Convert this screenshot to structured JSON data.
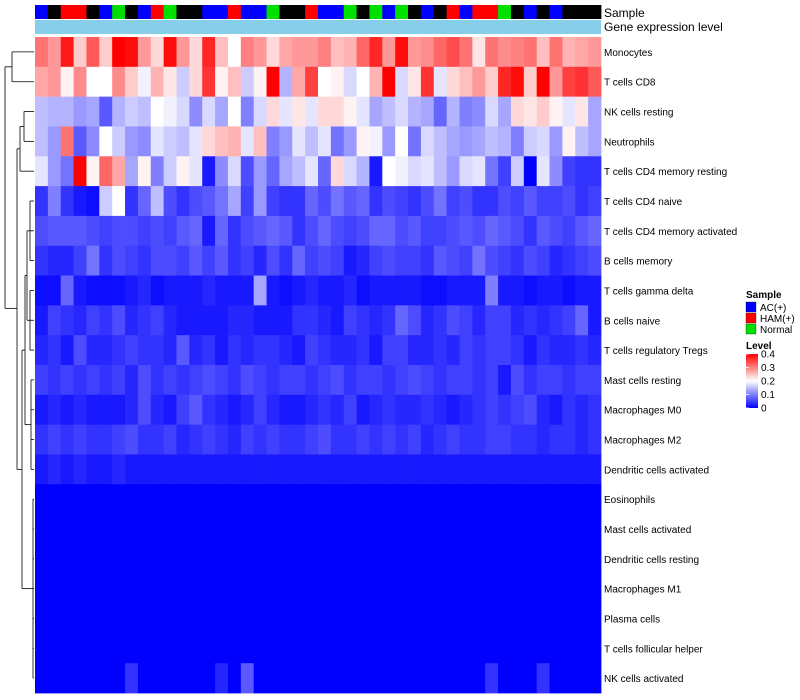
{
  "chart_data": {
    "type": "heatmap",
    "title": "",
    "annotation_rows": [
      "Sample",
      "Gene expression level"
    ],
    "sample_groups": [
      "A",
      "B",
      "H",
      "H",
      "B",
      "A",
      "N",
      "B",
      "A",
      "H",
      "N",
      "B",
      "B",
      "A",
      "A",
      "H",
      "A",
      "A",
      "N",
      "B",
      "B",
      "H",
      "A",
      "A",
      "N",
      "B",
      "N",
      "A",
      "N",
      "B",
      "A",
      "B",
      "H",
      "A",
      "H",
      "H",
      "N",
      "B",
      "A",
      "B",
      "A",
      "B",
      "B",
      "B"
    ],
    "group_key": {
      "A": "AC(+)",
      "H": "HAM(+)",
      "N": "Normal"
    },
    "group_colors": {
      "A": "#0000ff",
      "H": "#ff0000",
      "N": "#00e000"
    },
    "expression_bar_color": "#87ceeb",
    "rows": [
      "Monocytes",
      "T cells CD8",
      "NK cells resting",
      "Neutrophils",
      "T cells CD4 memory resting",
      "T cells CD4 naive",
      "T cells CD4 memory activated",
      "B cells memory",
      "T cells gamma delta",
      "B cells naive",
      "T cells regulatory  Tregs",
      "Mast cells resting",
      "Macrophages M0",
      "Macrophages M2",
      "Dendritic cells activated",
      "Eosinophils",
      "Mast cells activated",
      "Dendritic cells resting",
      "Macrophages M1",
      "Plasma cells",
      "T cells follicular helper",
      "NK cells activated"
    ],
    "value_range": [
      0,
      0.4
    ],
    "approximate_row_means": [
      0.27,
      0.24,
      0.17,
      0.16,
      0.14,
      0.06,
      0.06,
      0.05,
      0.02,
      0.03,
      0.03,
      0.04,
      0.03,
      0.04,
      0.02,
      0.0,
      0.0,
      0.0,
      0.0,
      0.0,
      0.0,
      0.01
    ],
    "values": [
      [
        0.31,
        0.28,
        0.38,
        0.24,
        0.33,
        0.24,
        0.4,
        0.39,
        0.28,
        0.23,
        0.39,
        0.28,
        0.23,
        0.37,
        0.25,
        0.2,
        0.3,
        0.28,
        0.23,
        0.27,
        0.28,
        0.28,
        0.3,
        0.25,
        0.26,
        0.32,
        0.37,
        0.28,
        0.39,
        0.28,
        0.29,
        0.32,
        0.34,
        0.31,
        0.22,
        0.31,
        0.29,
        0.3,
        0.31,
        0.25,
        0.31,
        0.26,
        0.27,
        0.28
      ],
      [
        0.27,
        0.28,
        0.21,
        0.29,
        0.2,
        0.2,
        0.29,
        0.24,
        0.19,
        0.26,
        0.22,
        0.16,
        0.23,
        0.36,
        0.21,
        0.25,
        0.16,
        0.21,
        0.4,
        0.14,
        0.27,
        0.35,
        0.2,
        0.21,
        0.17,
        0.2,
        0.26,
        0.4,
        0.17,
        0.22,
        0.36,
        0.18,
        0.23,
        0.25,
        0.28,
        0.24,
        0.37,
        0.39,
        0.24,
        0.4,
        0.28,
        0.35,
        0.36,
        0.33
      ],
      [
        0.15,
        0.14,
        0.14,
        0.12,
        0.13,
        0.07,
        0.14,
        0.16,
        0.15,
        0.2,
        0.19,
        0.17,
        0.11,
        0.17,
        0.13,
        0.2,
        0.1,
        0.17,
        0.23,
        0.18,
        0.22,
        0.18,
        0.23,
        0.23,
        0.21,
        0.18,
        0.13,
        0.15,
        0.17,
        0.14,
        0.13,
        0.08,
        0.14,
        0.1,
        0.11,
        0.17,
        0.13,
        0.23,
        0.22,
        0.24,
        0.21,
        0.18,
        0.22,
        0.13
      ],
      [
        0.15,
        0.12,
        0.31,
        0.07,
        0.11,
        0.2,
        0.16,
        0.12,
        0.11,
        0.18,
        0.16,
        0.15,
        0.18,
        0.23,
        0.25,
        0.26,
        0.18,
        0.25,
        0.1,
        0.12,
        0.18,
        0.15,
        0.18,
        0.09,
        0.12,
        0.21,
        0.19,
        0.12,
        0.2,
        0.09,
        0.17,
        0.15,
        0.13,
        0.12,
        0.13,
        0.15,
        0.14,
        0.1,
        0.16,
        0.17,
        0.12,
        0.21,
        0.15,
        0.13
      ],
      [
        0.18,
        0.12,
        0.09,
        0.4,
        0.21,
        0.32,
        0.27,
        0.13,
        0.21,
        0.1,
        0.16,
        0.21,
        0.18,
        0.02,
        0.11,
        0.17,
        0.06,
        0.12,
        0.08,
        0.13,
        0.15,
        0.18,
        0.08,
        0.23,
        0.17,
        0.14,
        0.02,
        0.2,
        0.19,
        0.17,
        0.18,
        0.15,
        0.12,
        0.17,
        0.18,
        0.09,
        0.05,
        0.16,
        0.0,
        0.18,
        0.11,
        0.05,
        0.04,
        0.04
      ],
      [
        0.04,
        0.1,
        0.04,
        0.02,
        0.01,
        0.16,
        0.2,
        0.04,
        0.08,
        0.15,
        0.06,
        0.04,
        0.06,
        0.07,
        0.09,
        0.13,
        0.05,
        0.12,
        0.05,
        0.04,
        0.04,
        0.08,
        0.06,
        0.09,
        0.07,
        0.08,
        0.04,
        0.06,
        0.05,
        0.04,
        0.06,
        0.09,
        0.05,
        0.06,
        0.04,
        0.04,
        0.06,
        0.05,
        0.07,
        0.05,
        0.05,
        0.06,
        0.04,
        0.05
      ],
      [
        0.06,
        0.07,
        0.07,
        0.07,
        0.06,
        0.05,
        0.06,
        0.06,
        0.05,
        0.06,
        0.05,
        0.07,
        0.08,
        0.02,
        0.08,
        0.04,
        0.06,
        0.07,
        0.08,
        0.07,
        0.04,
        0.06,
        0.08,
        0.06,
        0.05,
        0.06,
        0.08,
        0.08,
        0.06,
        0.07,
        0.05,
        0.05,
        0.06,
        0.07,
        0.06,
        0.08,
        0.07,
        0.06,
        0.04,
        0.07,
        0.06,
        0.05,
        0.07,
        0.08
      ],
      [
        0.04,
        0.03,
        0.03,
        0.05,
        0.09,
        0.04,
        0.06,
        0.05,
        0.04,
        0.06,
        0.06,
        0.05,
        0.07,
        0.05,
        0.07,
        0.04,
        0.05,
        0.03,
        0.06,
        0.04,
        0.08,
        0.05,
        0.06,
        0.05,
        0.02,
        0.03,
        0.05,
        0.06,
        0.05,
        0.05,
        0.04,
        0.07,
        0.06,
        0.05,
        0.09,
        0.06,
        0.05,
        0.04,
        0.06,
        0.05,
        0.03,
        0.04,
        0.05,
        0.06
      ],
      [
        0.01,
        0.01,
        0.08,
        0.02,
        0.01,
        0.01,
        0.01,
        0.02,
        0.03,
        0.01,
        0.02,
        0.02,
        0.02,
        0.03,
        0.02,
        0.02,
        0.02,
        0.13,
        0.02,
        0.01,
        0.02,
        0.03,
        0.02,
        0.02,
        0.03,
        0.01,
        0.02,
        0.02,
        0.02,
        0.02,
        0.01,
        0.01,
        0.02,
        0.02,
        0.02,
        0.1,
        0.02,
        0.02,
        0.01,
        0.02,
        0.02,
        0.01,
        0.02,
        0.02
      ],
      [
        0.02,
        0.05,
        0.04,
        0.03,
        0.05,
        0.04,
        0.06,
        0.03,
        0.04,
        0.05,
        0.03,
        0.02,
        0.02,
        0.02,
        0.02,
        0.03,
        0.03,
        0.02,
        0.02,
        0.02,
        0.04,
        0.04,
        0.03,
        0.02,
        0.05,
        0.04,
        0.03,
        0.04,
        0.08,
        0.06,
        0.03,
        0.04,
        0.06,
        0.05,
        0.03,
        0.05,
        0.05,
        0.03,
        0.04,
        0.03,
        0.04,
        0.05,
        0.08,
        0.02
      ],
      [
        0.03,
        0.04,
        0.02,
        0.06,
        0.03,
        0.03,
        0.04,
        0.05,
        0.04,
        0.04,
        0.03,
        0.07,
        0.03,
        0.04,
        0.02,
        0.04,
        0.03,
        0.04,
        0.04,
        0.03,
        0.02,
        0.05,
        0.04,
        0.03,
        0.03,
        0.04,
        0.02,
        0.05,
        0.05,
        0.03,
        0.03,
        0.04,
        0.03,
        0.05,
        0.04,
        0.05,
        0.05,
        0.04,
        0.02,
        0.04,
        0.03,
        0.03,
        0.04,
        0.03
      ],
      [
        0.05,
        0.04,
        0.05,
        0.04,
        0.05,
        0.04,
        0.05,
        0.03,
        0.06,
        0.04,
        0.05,
        0.04,
        0.05,
        0.06,
        0.05,
        0.04,
        0.06,
        0.05,
        0.04,
        0.05,
        0.05,
        0.04,
        0.05,
        0.06,
        0.04,
        0.05,
        0.05,
        0.04,
        0.05,
        0.06,
        0.05,
        0.04,
        0.05,
        0.05,
        0.04,
        0.05,
        0.02,
        0.06,
        0.04,
        0.05,
        0.05,
        0.04,
        0.05,
        0.05
      ],
      [
        0.02,
        0.03,
        0.02,
        0.03,
        0.02,
        0.02,
        0.02,
        0.03,
        0.06,
        0.03,
        0.02,
        0.05,
        0.07,
        0.04,
        0.03,
        0.02,
        0.03,
        0.05,
        0.03,
        0.02,
        0.02,
        0.03,
        0.04,
        0.03,
        0.05,
        0.02,
        0.03,
        0.04,
        0.03,
        0.03,
        0.04,
        0.03,
        0.02,
        0.03,
        0.04,
        0.05,
        0.04,
        0.05,
        0.06,
        0.03,
        0.02,
        0.04,
        0.03,
        0.04
      ],
      [
        0.04,
        0.05,
        0.04,
        0.05,
        0.04,
        0.04,
        0.05,
        0.06,
        0.04,
        0.04,
        0.05,
        0.03,
        0.04,
        0.05,
        0.04,
        0.03,
        0.05,
        0.04,
        0.05,
        0.04,
        0.04,
        0.05,
        0.06,
        0.04,
        0.04,
        0.05,
        0.04,
        0.05,
        0.04,
        0.05,
        0.03,
        0.04,
        0.05,
        0.04,
        0.04,
        0.05,
        0.05,
        0.04,
        0.04,
        0.03,
        0.04,
        0.04,
        0.03,
        0.04
      ],
      [
        0.02,
        0.03,
        0.02,
        0.03,
        0.02,
        0.02,
        0.03,
        0.02,
        0.02,
        0.02,
        0.02,
        0.02,
        0.02,
        0.02,
        0.02,
        0.02,
        0.02,
        0.02,
        0.02,
        0.02,
        0.02,
        0.02,
        0.02,
        0.02,
        0.02,
        0.02,
        0.02,
        0.02,
        0.02,
        0.02,
        0.02,
        0.02,
        0.02,
        0.02,
        0.02,
        0.02,
        0.02,
        0.02,
        0.02,
        0.02,
        0.02,
        0.02,
        0.02,
        0.02
      ],
      [
        0,
        0,
        0,
        0,
        0,
        0,
        0,
        0,
        0,
        0,
        0,
        0,
        0,
        0,
        0,
        0,
        0,
        0,
        0,
        0,
        0,
        0,
        0,
        0,
        0,
        0,
        0,
        0,
        0,
        0,
        0,
        0,
        0,
        0,
        0,
        0,
        0,
        0,
        0,
        0,
        0,
        0,
        0,
        0
      ],
      [
        0,
        0,
        0,
        0,
        0,
        0,
        0,
        0,
        0,
        0,
        0,
        0,
        0,
        0,
        0,
        0,
        0,
        0,
        0,
        0,
        0,
        0,
        0,
        0,
        0,
        0,
        0,
        0,
        0,
        0,
        0,
        0,
        0,
        0,
        0,
        0,
        0,
        0,
        0,
        0,
        0,
        0,
        0,
        0
      ],
      [
        0,
        0,
        0,
        0,
        0,
        0,
        0,
        0,
        0,
        0,
        0,
        0,
        0,
        0,
        0,
        0,
        0,
        0,
        0,
        0,
        0,
        0,
        0,
        0,
        0,
        0,
        0,
        0,
        0,
        0,
        0,
        0,
        0,
        0,
        0,
        0,
        0,
        0,
        0,
        0,
        0,
        0,
        0,
        0
      ],
      [
        0,
        0,
        0,
        0,
        0,
        0,
        0,
        0,
        0,
        0,
        0,
        0,
        0,
        0,
        0,
        0,
        0,
        0,
        0,
        0,
        0,
        0,
        0,
        0,
        0,
        0,
        0,
        0,
        0,
        0,
        0,
        0,
        0,
        0,
        0,
        0,
        0,
        0,
        0,
        0,
        0,
        0,
        0,
        0
      ],
      [
        0,
        0,
        0,
        0,
        0,
        0,
        0,
        0,
        0,
        0,
        0,
        0,
        0,
        0,
        0,
        0,
        0,
        0,
        0,
        0,
        0,
        0,
        0,
        0,
        0,
        0,
        0,
        0,
        0,
        0,
        0,
        0,
        0,
        0,
        0,
        0,
        0,
        0,
        0,
        0,
        0,
        0,
        0,
        0
      ],
      [
        0,
        0,
        0,
        0,
        0,
        0,
        0,
        0,
        0,
        0,
        0,
        0,
        0,
        0,
        0,
        0,
        0,
        0,
        0,
        0,
        0,
        0,
        0,
        0,
        0,
        0,
        0,
        0,
        0,
        0,
        0,
        0,
        0,
        0,
        0,
        0,
        0,
        0,
        0,
        0,
        0,
        0,
        0,
        0
      ],
      [
        0,
        0,
        0,
        0,
        0,
        0,
        0,
        0.04,
        0,
        0,
        0,
        0,
        0,
        0,
        0.03,
        0,
        0.07,
        0,
        0,
        0,
        0,
        0,
        0,
        0,
        0,
        0,
        0,
        0,
        0,
        0,
        0,
        0,
        0,
        0,
        0,
        0.04,
        0,
        0,
        0,
        0.04,
        0,
        0,
        0,
        0
      ]
    ],
    "legend": {
      "sample_title": "Sample",
      "sample_entries": [
        {
          "label": "AC(+)",
          "color": "#0000ff"
        },
        {
          "label": "HAM(+)",
          "color": "#ff0000"
        },
        {
          "label": "Normal",
          "color": "#00e000"
        }
      ],
      "level_title": "Level",
      "level_ticks": [
        "0.4",
        "0.3",
        "0.2",
        "0.1",
        "0"
      ],
      "placement": "right"
    },
    "row_dendrogram": true
  }
}
